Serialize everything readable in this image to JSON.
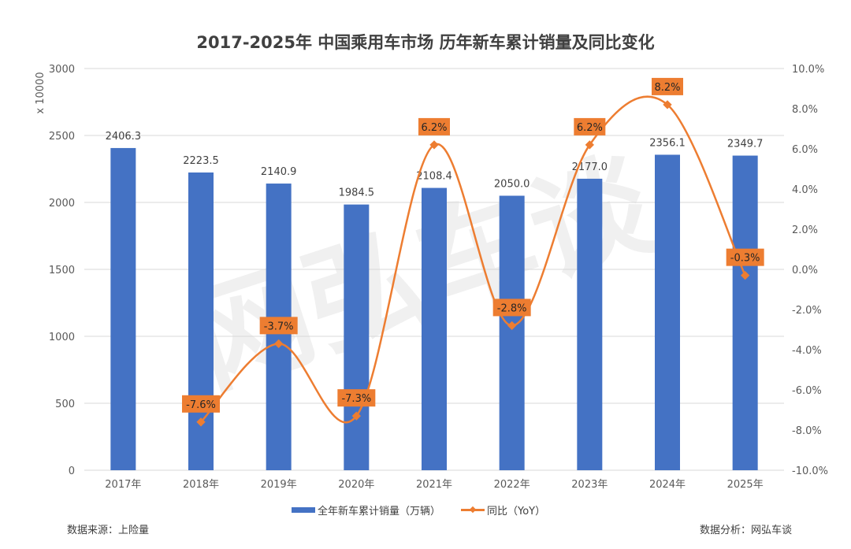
{
  "chart_data": {
    "type": "bar+line",
    "title": "2017-2025年 中国乘用车市场 历年新车累计销量及同比变化",
    "ylabel": "x 10000",
    "categories": [
      "2017年",
      "2018年",
      "2019年",
      "2020年",
      "2021年",
      "2022年",
      "2023年",
      "2024年",
      "2025年"
    ],
    "series": [
      {
        "name": "全年新车累计销量（万辆）",
        "type": "bar",
        "axis": "left",
        "color": "#4472C4",
        "values": [
          2406.3,
          2223.5,
          2140.9,
          1984.5,
          2108.4,
          2050.0,
          2177.0,
          2356.1,
          2349.7
        ],
        "labels": [
          "2406.3",
          "2223.5",
          "2140.9",
          "1984.5",
          "2108.4",
          "2050.0",
          "2177.0",
          "2356.1",
          "2349.7"
        ]
      },
      {
        "name": "同比（YoY）",
        "type": "line",
        "axis": "right",
        "color": "#ED7D31",
        "values": [
          null,
          -7.6,
          -3.7,
          -7.3,
          6.2,
          -2.8,
          6.2,
          8.2,
          -0.3
        ],
        "labels": [
          null,
          "-7.6%",
          "-3.7%",
          "-7.3%",
          "6.2%",
          "-2.8%",
          "6.2%",
          "8.2%",
          "-0.3%"
        ]
      }
    ],
    "ylim": [
      0,
      3000
    ],
    "y_ticks": [
      "0",
      "500",
      "1000",
      "1500",
      "2000",
      "2500",
      "3000"
    ],
    "y2lim": [
      -10,
      10
    ],
    "y2_ticks": [
      "-10.0%",
      "-8.0%",
      "-6.0%",
      "-4.0%",
      "-2.0%",
      "0.0%",
      "2.0%",
      "4.0%",
      "6.0%",
      "8.0%",
      "10.0%"
    ],
    "grid": true,
    "legend": "bottom"
  },
  "footer": {
    "source": "数据来源：上险量",
    "analysis": "数据分析：网弘车谈"
  },
  "watermark": "网弘车谈"
}
